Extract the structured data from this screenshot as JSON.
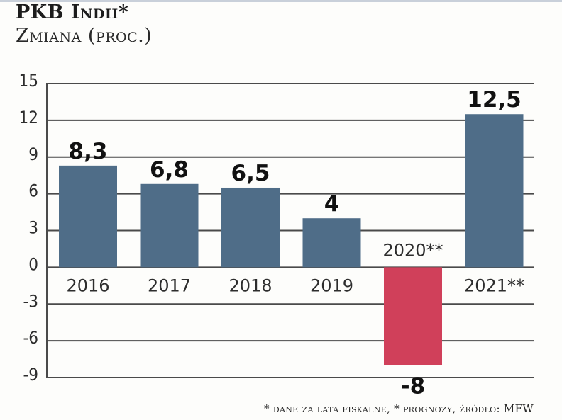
{
  "header": {
    "title": "PKB Indii*",
    "subtitle": "Zmiana (proc.)"
  },
  "footer": {
    "note": "* dane za lata fiskalne, * prognozy, źródło: MFW"
  },
  "colors": {
    "positive": "#4f6d88",
    "negative": "#d0405a",
    "grid": "#4a4a4a"
  },
  "chart_data": {
    "type": "bar",
    "title": "PKB Indii*",
    "subtitle": "Zmiana (proc.)",
    "xlabel": "",
    "ylabel": "",
    "categories": [
      "2016",
      "2017",
      "2018",
      "2019",
      "2020**",
      "2021**"
    ],
    "values": [
      8.3,
      6.8,
      6.5,
      4,
      -8,
      12.5
    ],
    "value_labels": [
      "8,3",
      "6,8",
      "6,5",
      "4",
      "-8",
      "12,5"
    ],
    "ylim": [
      -9,
      15
    ],
    "yticks": [
      15,
      12,
      9,
      6,
      3,
      0,
      -3,
      -6,
      -9
    ],
    "ytick_labels": [
      "15",
      "12",
      "9",
      "6",
      "3",
      "0",
      "-3",
      "-6",
      "-9"
    ],
    "grid": true,
    "legend": "none",
    "source": "MFW",
    "notes": [
      "* dane za lata fiskalne",
      "* prognozy"
    ]
  }
}
